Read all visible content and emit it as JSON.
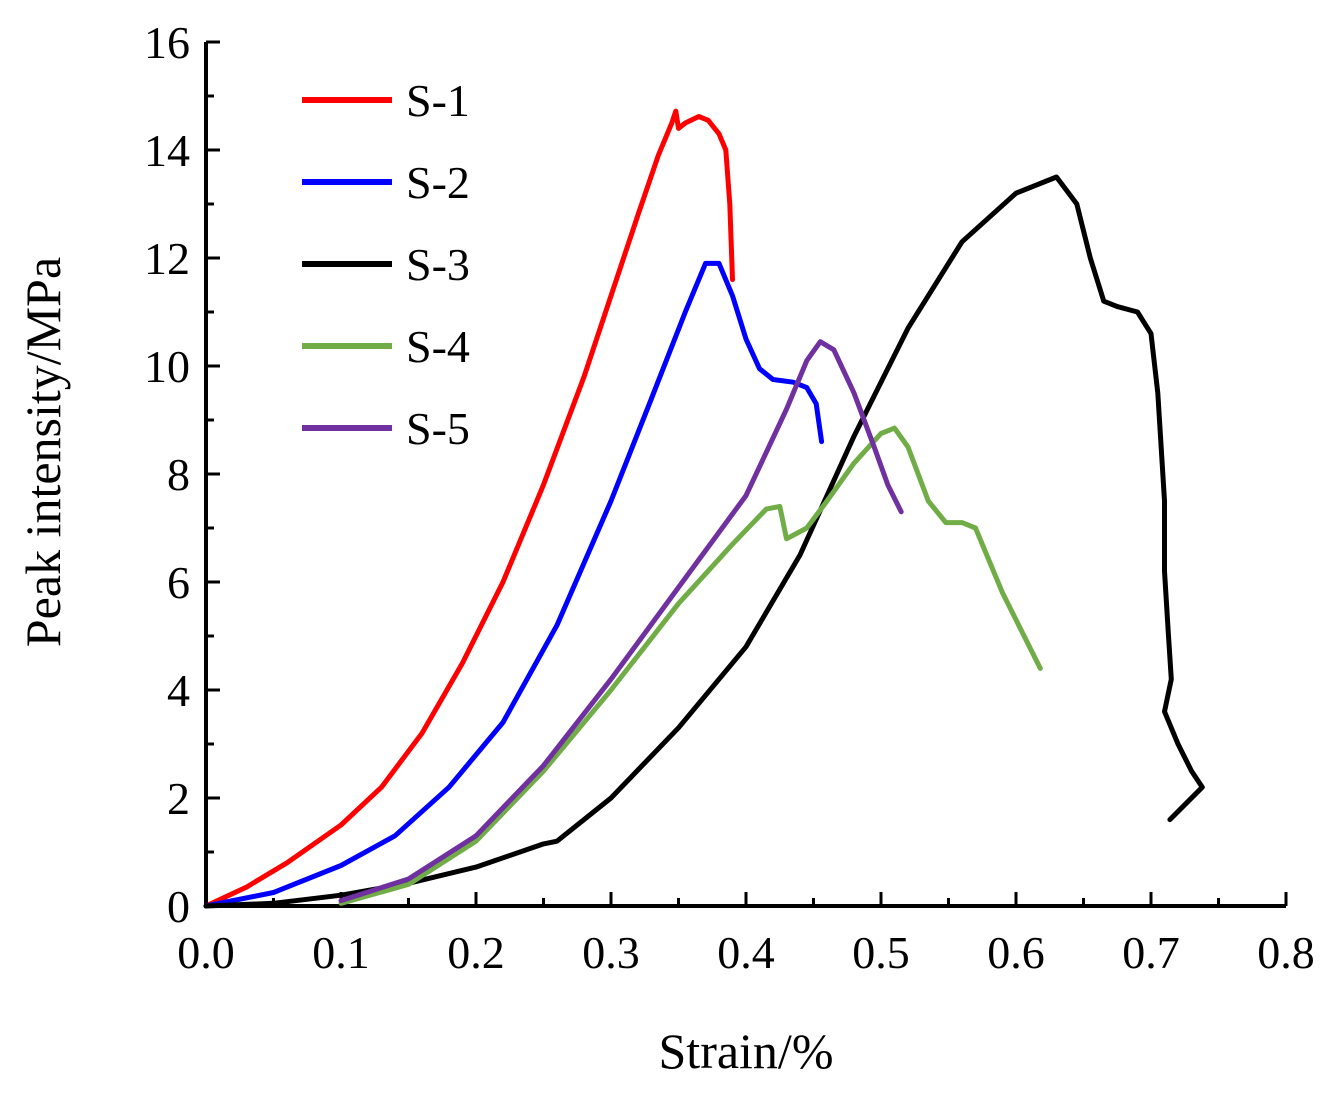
{
  "chart_data": {
    "type": "line",
    "title": "",
    "xlabel": "Strain/%",
    "ylabel": "Peak intensity/MPa",
    "xlim": [
      0.0,
      0.8
    ],
    "ylim": [
      0,
      16
    ],
    "x_ticks": [
      "0.0",
      "0.1",
      "0.2",
      "0.3",
      "0.4",
      "0.5",
      "0.6",
      "0.7",
      "0.8"
    ],
    "y_ticks": [
      "0",
      "2",
      "4",
      "6",
      "8",
      "10",
      "12",
      "14",
      "16"
    ],
    "grid": false,
    "legend_position": "top-left",
    "series": [
      {
        "name": "S-1",
        "color": "#ff0000",
        "points": [
          [
            0.0,
            0.0
          ],
          [
            0.03,
            0.35
          ],
          [
            0.06,
            0.8
          ],
          [
            0.1,
            1.5
          ],
          [
            0.13,
            2.2
          ],
          [
            0.16,
            3.2
          ],
          [
            0.19,
            4.5
          ],
          [
            0.22,
            6.0
          ],
          [
            0.25,
            7.8
          ],
          [
            0.28,
            9.8
          ],
          [
            0.3,
            11.3
          ],
          [
            0.32,
            12.8
          ],
          [
            0.335,
            13.9
          ],
          [
            0.345,
            14.5
          ],
          [
            0.348,
            14.72
          ],
          [
            0.35,
            14.4
          ],
          [
            0.355,
            14.5
          ],
          [
            0.365,
            14.62
          ],
          [
            0.372,
            14.55
          ],
          [
            0.38,
            14.3
          ],
          [
            0.385,
            14.0
          ],
          [
            0.388,
            13.0
          ],
          [
            0.39,
            11.6
          ]
        ]
      },
      {
        "name": "S-2",
        "color": "#0000ff",
        "points": [
          [
            0.0,
            0.0
          ],
          [
            0.05,
            0.25
          ],
          [
            0.1,
            0.75
          ],
          [
            0.14,
            1.3
          ],
          [
            0.18,
            2.2
          ],
          [
            0.22,
            3.4
          ],
          [
            0.26,
            5.2
          ],
          [
            0.3,
            7.5
          ],
          [
            0.33,
            9.4
          ],
          [
            0.355,
            11.0
          ],
          [
            0.37,
            11.9
          ],
          [
            0.38,
            11.9
          ],
          [
            0.39,
            11.3
          ],
          [
            0.4,
            10.5
          ],
          [
            0.41,
            9.95
          ],
          [
            0.42,
            9.75
          ],
          [
            0.435,
            9.7
          ],
          [
            0.445,
            9.6
          ],
          [
            0.452,
            9.3
          ],
          [
            0.456,
            8.6
          ]
        ]
      },
      {
        "name": "S-3",
        "color": "#000000",
        "points": [
          [
            0.0,
            0.0
          ],
          [
            0.05,
            0.05
          ],
          [
            0.1,
            0.2
          ],
          [
            0.15,
            0.42
          ],
          [
            0.2,
            0.72
          ],
          [
            0.25,
            1.15
          ],
          [
            0.26,
            1.2
          ],
          [
            0.3,
            2.0
          ],
          [
            0.35,
            3.3
          ],
          [
            0.4,
            4.8
          ],
          [
            0.44,
            6.5
          ],
          [
            0.48,
            8.7
          ],
          [
            0.52,
            10.7
          ],
          [
            0.56,
            12.3
          ],
          [
            0.6,
            13.2
          ],
          [
            0.63,
            13.5
          ],
          [
            0.645,
            13.0
          ],
          [
            0.655,
            12.0
          ],
          [
            0.665,
            11.2
          ],
          [
            0.675,
            11.1
          ],
          [
            0.69,
            11.0
          ],
          [
            0.7,
            10.6
          ],
          [
            0.705,
            9.5
          ],
          [
            0.71,
            7.5
          ],
          [
            0.71,
            6.2
          ],
          [
            0.713,
            5.0
          ],
          [
            0.715,
            4.2
          ],
          [
            0.71,
            3.6
          ],
          [
            0.72,
            3.0
          ],
          [
            0.73,
            2.5
          ],
          [
            0.738,
            2.2
          ],
          [
            0.714,
            1.6
          ]
        ]
      },
      {
        "name": "S-4",
        "color": "#70ad47",
        "points": [
          [
            0.1,
            0.05
          ],
          [
            0.15,
            0.4
          ],
          [
            0.2,
            1.2
          ],
          [
            0.25,
            2.5
          ],
          [
            0.3,
            4.0
          ],
          [
            0.35,
            5.6
          ],
          [
            0.39,
            6.7
          ],
          [
            0.415,
            7.35
          ],
          [
            0.425,
            7.4
          ],
          [
            0.43,
            6.8
          ],
          [
            0.445,
            7.0
          ],
          [
            0.46,
            7.5
          ],
          [
            0.48,
            8.2
          ],
          [
            0.5,
            8.75
          ],
          [
            0.51,
            8.85
          ],
          [
            0.52,
            8.5
          ],
          [
            0.535,
            7.5
          ],
          [
            0.548,
            7.1
          ],
          [
            0.56,
            7.1
          ],
          [
            0.57,
            7.0
          ],
          [
            0.59,
            5.8
          ],
          [
            0.618,
            4.4
          ]
        ]
      },
      {
        "name": "S-5",
        "color": "#7030a0",
        "points": [
          [
            0.1,
            0.1
          ],
          [
            0.15,
            0.5
          ],
          [
            0.2,
            1.3
          ],
          [
            0.25,
            2.6
          ],
          [
            0.3,
            4.2
          ],
          [
            0.35,
            5.9
          ],
          [
            0.4,
            7.6
          ],
          [
            0.43,
            9.2
          ],
          [
            0.445,
            10.1
          ],
          [
            0.455,
            10.45
          ],
          [
            0.465,
            10.3
          ],
          [
            0.48,
            9.5
          ],
          [
            0.495,
            8.5
          ],
          [
            0.505,
            7.8
          ],
          [
            0.515,
            7.3
          ]
        ]
      }
    ]
  }
}
